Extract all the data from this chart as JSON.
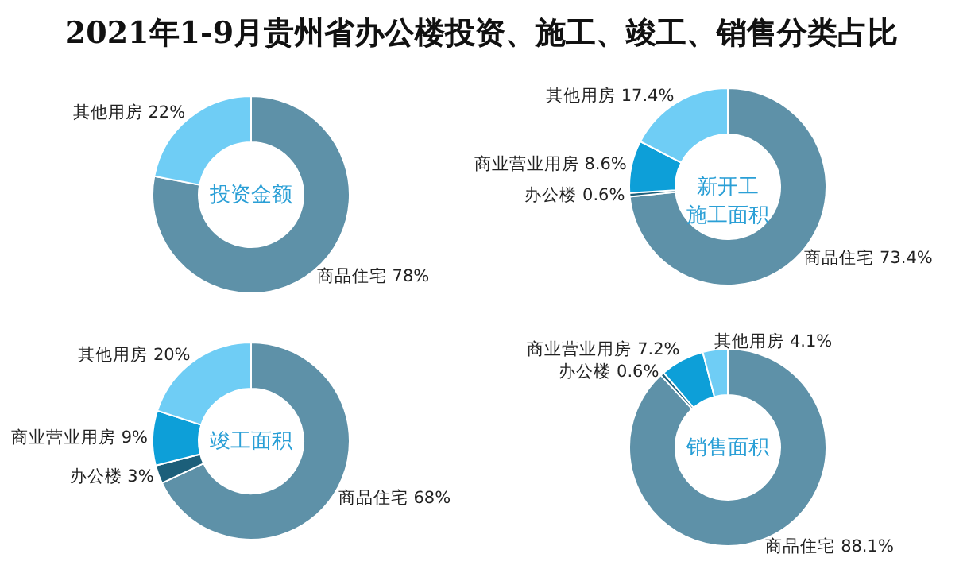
{
  "chart_data": [
    {
      "type": "donut",
      "title": "2021年1-9月贵州省办公楼投资、施工、竣工、销售分类占比",
      "annotations": [
        "投资金额"
      ],
      "categories": [
        "商品住宅",
        "其他用房"
      ],
      "values": [
        78,
        22
      ],
      "colors": [
        "#5e91a8",
        "#6fcdf5"
      ],
      "value_labels": [
        "78%",
        "22%"
      ]
    },
    {
      "type": "donut",
      "annotations": [
        "新开工施工面积"
      ],
      "categories": [
        "商品住宅",
        "办公楼",
        "商业营业用房",
        "其他用房"
      ],
      "values": [
        73.4,
        0.6,
        8.6,
        17.4
      ],
      "colors": [
        "#5e91a8",
        "#1c5f7a",
        "#0d9fd8",
        "#6fcdf5"
      ],
      "value_labels": [
        "73.4%",
        "0.6%",
        "8.6%",
        "17.4%"
      ]
    },
    {
      "type": "donut",
      "annotations": [
        "竣工面积"
      ],
      "categories": [
        "商品住宅",
        "办公楼",
        "商业营业用房",
        "其他用房"
      ],
      "values": [
        68,
        3,
        9,
        20
      ],
      "colors": [
        "#5e91a8",
        "#1c5f7a",
        "#0d9fd8",
        "#6fcdf5"
      ],
      "value_labels": [
        "68%",
        "3%",
        "9%",
        "20%"
      ]
    },
    {
      "type": "donut",
      "annotations": [
        "销售面积"
      ],
      "categories": [
        "商品住宅",
        "办公楼",
        "商业营业用房",
        "其他用房"
      ],
      "values": [
        88.1,
        0.6,
        7.2,
        4.1
      ],
      "colors": [
        "#5e91a8",
        "#1c5f7a",
        "#0d9fd8",
        "#6fcdf5"
      ],
      "value_labels": [
        "88.1%",
        "0.6%",
        "7.2%",
        "4.1%"
      ]
    }
  ]
}
